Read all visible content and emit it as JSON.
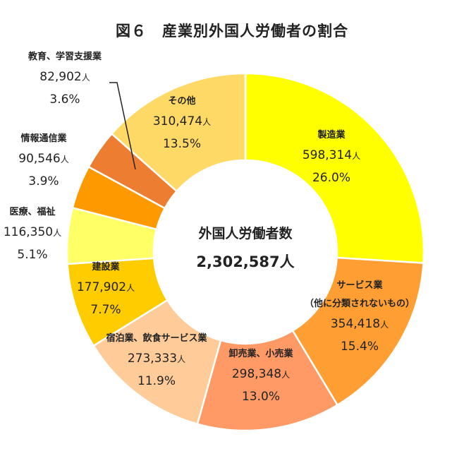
{
  "title": "図６　産業別外国人労働者の割合",
  "chart_data": {
    "type": "pie",
    "donut": true,
    "center_label": "外国人労働者数",
    "total": "2,302,587人",
    "unit": "人",
    "slices": [
      {
        "label": "製造業",
        "value": 598314,
        "value_text": "598,314",
        "percent": "26.0%",
        "color": "#FFFF00"
      },
      {
        "label": "サービス業",
        "label2": "（他に分類されないもの）",
        "value": 354418,
        "value_text": "354,418",
        "percent": "15.4%",
        "color": "#FF9F33"
      },
      {
        "label": "卸売業、小売業",
        "value": 298348,
        "value_text": "298,348",
        "percent": "13.0%",
        "color": "#FF9966"
      },
      {
        "label": "宿泊業、飲食サービス業",
        "value": 273333,
        "value_text": "273,333",
        "percent": "11.9%",
        "color": "#FFCC99"
      },
      {
        "label": "建設業",
        "value": 177902,
        "value_text": "177,902",
        "percent": "7.7%",
        "color": "#FFCC00"
      },
      {
        "label": "医療、福祉",
        "value": 116350,
        "value_text": "116,350",
        "percent": "5.1%",
        "color": "#FFFF66"
      },
      {
        "label": "情報通信業",
        "value": 90546,
        "value_text": "90,546",
        "percent": "3.9%",
        "color": "#FF9900"
      },
      {
        "label": "教育、学習支援業",
        "value": 82902,
        "value_text": "82,902",
        "percent": "3.6%",
        "color": "#ED7D31"
      },
      {
        "label": "その他",
        "value": 310474,
        "value_text": "310,474",
        "percent": "13.5%",
        "color": "#FFD966"
      }
    ]
  }
}
